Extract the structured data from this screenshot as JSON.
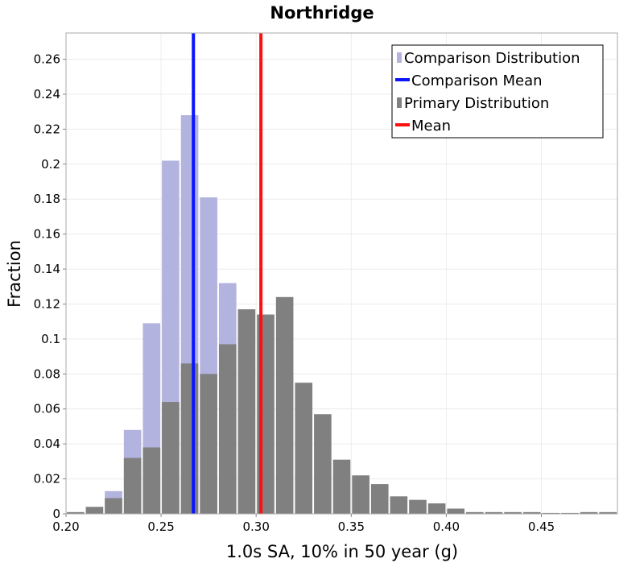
{
  "chart_data": {
    "type": "bar",
    "title": "Northridge",
    "xlabel": "1.0s SA, 10% in 50 year (g)",
    "ylabel": "Fraction",
    "xlim": [
      0.2,
      0.49
    ],
    "ylim": [
      0,
      0.275
    ],
    "x_ticks": [
      0.2,
      0.25,
      0.3,
      0.35,
      0.4,
      0.45
    ],
    "x_tick_labels": [
      "0.20",
      "0.25",
      "0.30",
      "0.35",
      "0.40",
      "0.45"
    ],
    "y_ticks": [
      0,
      0.02,
      0.04,
      0.06,
      0.08,
      0.1,
      0.12,
      0.14,
      0.16,
      0.18,
      0.2,
      0.22,
      0.24,
      0.26
    ],
    "y_tick_labels": [
      "0",
      "0.02",
      "0.04",
      "0.06",
      "0.08",
      "0.1",
      "0.12",
      "0.14",
      "0.16",
      "0.18",
      "0.2",
      "0.22",
      "0.24",
      "0.26"
    ],
    "bin_width": 0.01,
    "grid": true,
    "legend_position": "top-right",
    "legend": [
      {
        "label": "Comparison Distribution",
        "kind": "bar",
        "color": "#b3b3df"
      },
      {
        "label": "Comparison Mean",
        "kind": "line",
        "color": "#0a14ff"
      },
      {
        "label": "Primary Distribution",
        "kind": "bar",
        "color": "#808080"
      },
      {
        "label": "Mean",
        "kind": "line",
        "color": "#ff1010"
      }
    ],
    "series": [
      {
        "name": "Comparison Distribution",
        "color": "#b3b3df",
        "bin_starts": [
          0.2,
          0.21,
          0.22,
          0.23,
          0.24,
          0.25,
          0.26,
          0.27,
          0.28,
          0.29,
          0.3
        ],
        "values": [
          0.0,
          0.0,
          0.013,
          0.048,
          0.109,
          0.202,
          0.228,
          0.181,
          0.132,
          0.0,
          0.0
        ]
      },
      {
        "name": "Primary Distribution",
        "color": "#808080",
        "bin_starts": [
          0.2,
          0.21,
          0.22,
          0.23,
          0.24,
          0.25,
          0.26,
          0.27,
          0.28,
          0.29,
          0.3,
          0.31,
          0.32,
          0.33,
          0.34,
          0.35,
          0.36,
          0.37,
          0.38,
          0.39,
          0.4,
          0.41,
          0.42,
          0.43,
          0.44,
          0.45,
          0.46,
          0.47,
          0.48
        ],
        "values": [
          0.001,
          0.004,
          0.009,
          0.032,
          0.038,
          0.064,
          0.086,
          0.08,
          0.097,
          0.117,
          0.114,
          0.124,
          0.075,
          0.057,
          0.031,
          0.022,
          0.017,
          0.01,
          0.008,
          0.006,
          0.003,
          0.001,
          0.001,
          0.001,
          0.001,
          0.0005,
          0.0005,
          0.001,
          0.001
        ]
      }
    ],
    "vertical_lines": [
      {
        "name": "Comparison Mean",
        "x": 0.267,
        "color": "#0a14ff"
      },
      {
        "name": "Mean",
        "x": 0.3025,
        "color": "#ff1010"
      }
    ]
  }
}
